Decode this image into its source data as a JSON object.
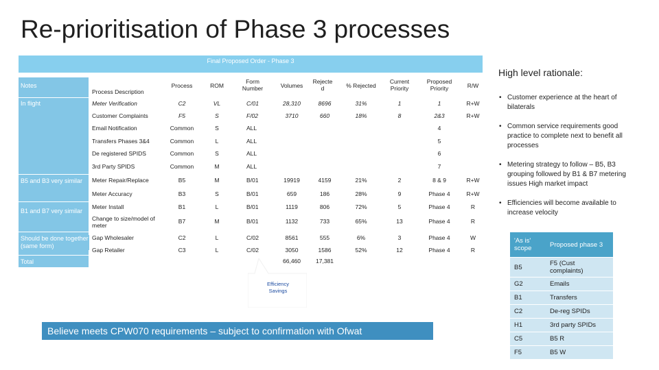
{
  "title": "Re-prioritisation of Phase 3 processes",
  "banner": "Final Proposed Order - Phase 3",
  "headers": {
    "notes": "Notes",
    "process_description": "Process Description",
    "process": "Process",
    "rom": "ROM",
    "form_number": "Form Number",
    "volumes": "Volumes",
    "rejected": "Rejecte d",
    "pct_rejected": "% Rejected",
    "current_priority": "Current Priority",
    "proposed_priority": "Proposed Priority",
    "rw": "R/W"
  },
  "notes": {
    "in_flight": "In flight",
    "b5_b3": "B5 and B3 very similar",
    "b1_b7": "B1 and B7 very similar",
    "should_be_done": "Should be done together (same form)",
    "total": "Total"
  },
  "rows": [
    {
      "desc": "Meter Verification",
      "process": "C2",
      "rom": "VL",
      "form": "C/01",
      "volumes": "28,310",
      "rejected": "8696",
      "pct": "31%",
      "current": "1",
      "proposed": "1",
      "rw": "R+W"
    },
    {
      "desc": "Customer Complaints",
      "process": "F5",
      "rom": "S",
      "form": "F/02",
      "volumes": "3710",
      "rejected": "660",
      "pct": "18%",
      "current": "8",
      "proposed": "2&3",
      "rw": "R+W"
    },
    {
      "desc": "Email Notification",
      "process": "Common",
      "rom": "S",
      "form": "ALL",
      "volumes": "",
      "rejected": "",
      "pct": "",
      "current": "",
      "proposed": "4",
      "rw": ""
    },
    {
      "desc": "Transfers Phases 3&4",
      "process": "Common",
      "rom": "L",
      "form": "ALL",
      "volumes": "",
      "rejected": "",
      "pct": "",
      "current": "",
      "proposed": "5",
      "rw": ""
    },
    {
      "desc": "De registered SPIDS",
      "process": "Common",
      "rom": "S",
      "form": "ALL",
      "volumes": "",
      "rejected": "",
      "pct": "",
      "current": "",
      "proposed": "6",
      "rw": ""
    },
    {
      "desc": "3rd Party SPIDS",
      "process": "Common",
      "rom": "M",
      "form": "ALL",
      "volumes": "",
      "rejected": "",
      "pct": "",
      "current": "",
      "proposed": "7",
      "rw": ""
    },
    {
      "desc": "Meter Repair/Replace",
      "process": "B5",
      "rom": "M",
      "form": "B/01",
      "volumes": "19919",
      "rejected": "4159",
      "pct": "21%",
      "current": "2",
      "proposed": "8 & 9",
      "rw": "R+W"
    },
    {
      "desc": "Meter Accuracy",
      "process": "B3",
      "rom": "S",
      "form": "B/01",
      "volumes": "659",
      "rejected": "186",
      "pct": "28%",
      "current": "9",
      "proposed": "Phase 4",
      "rw": "R+W"
    },
    {
      "desc": "Meter Install",
      "process": "B1",
      "rom": "L",
      "form": "B/01",
      "volumes": "1119",
      "rejected": "806",
      "pct": "72%",
      "current": "5",
      "proposed": "Phase 4",
      "rw": "R"
    },
    {
      "desc": "Change to size/model of meter",
      "process": "B7",
      "rom": "M",
      "form": "B/01",
      "volumes": "1132",
      "rejected": "733",
      "pct": "65%",
      "current": "13",
      "proposed": "Phase 4",
      "rw": "R"
    },
    {
      "desc": "Gap Wholesaler",
      "process": "C2",
      "rom": "L",
      "form": "C/02",
      "volumes": "8561",
      "rejected": "555",
      "pct": "6%",
      "current": "3",
      "proposed": "Phase 4",
      "rw": "W"
    },
    {
      "desc": "Gap Retailer",
      "process": "C3",
      "rom": "L",
      "form": "C/02",
      "volumes": "3050",
      "rejected": "1586",
      "pct": "52%",
      "current": "12",
      "proposed": "Phase 4",
      "rw": "R"
    }
  ],
  "totals": {
    "volumes": "66,460",
    "rejected": "17,381"
  },
  "callout": "Efficiency Savings",
  "rationale": {
    "title": "High level rationale:",
    "bullets": [
      "Customer experience at the heart of bilaterals",
      "Common service requirements good practice to complete next to benefit all processes",
      "Metering strategy to follow – B5, B3 grouping followed by B1 & B7 metering issues High market impact",
      "Efficiencies will become available to increase velocity"
    ]
  },
  "scope_table": {
    "headers": [
      "'As is' scope",
      "Proposed phase 3"
    ],
    "rows": [
      [
        "B5",
        "F5 (Cust complaints)"
      ],
      [
        "G2",
        "Emails"
      ],
      [
        "B1",
        "Transfers"
      ],
      [
        "C2",
        "De-reg SPIDs"
      ],
      [
        "H1",
        "3rd party SPIDs"
      ],
      [
        "C5",
        "B5 R"
      ],
      [
        "F5",
        "B5 W"
      ]
    ]
  },
  "bottom_statement": "Believe meets CPW070 requirements – subject to confirmation with Ofwat",
  "colors": {
    "banner": "#87cfee",
    "notes": "#83c6e6",
    "table_head": "#4aa3c9",
    "table_row": "#cfe6f2",
    "bottom_box": "#3f8fc0"
  }
}
